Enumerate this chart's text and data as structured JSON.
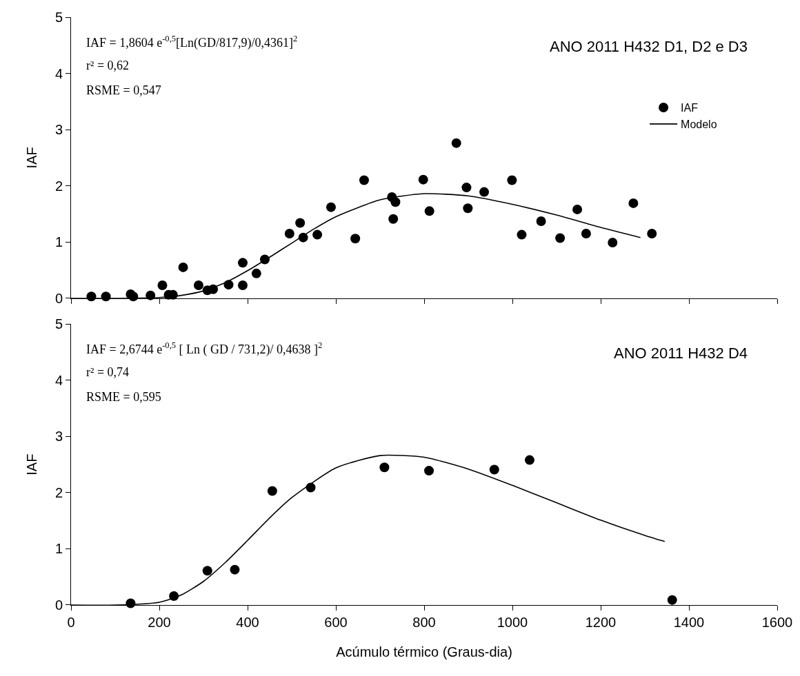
{
  "chart_data": [
    {
      "type": "scatter",
      "title": "ANO 2011 H432 D1, D2 e D3",
      "ylabel": "IAF",
      "xlim": [
        0,
        1600
      ],
      "xticks": [
        0,
        200,
        400,
        600,
        800,
        1000,
        1200,
        1400,
        1600
      ],
      "ylim": [
        0,
        5
      ],
      "yticks": [
        0,
        1,
        2,
        3,
        4,
        5
      ],
      "tick_labels": "y",
      "legend": "top right",
      "annotations": [
        "IAF = 1,8604 e$^{-0,5}$[Ln(GD/817,9)/0,4361]$^{2}$",
        "r² = 0,62",
        "RSME = 0,547"
      ],
      "series": [
        {
          "name": "IAF",
          "marker": "circle",
          "color": "#000000",
          "x": [
            46,
            79,
            135,
            141,
            180,
            207,
            221,
            231,
            254,
            289,
            309,
            322,
            357,
            389,
            389,
            420,
            439,
            495,
            519,
            526,
            558,
            589,
            644,
            664,
            727,
            735,
            730,
            798,
            812,
            873,
            896,
            899,
            936,
            999,
            1021,
            1065,
            1108,
            1147,
            1167,
            1227,
            1274,
            1316
          ],
          "values": [
            0.03,
            0.03,
            0.07,
            0.03,
            0.05,
            0.23,
            0.06,
            0.06,
            0.55,
            0.23,
            0.14,
            0.16,
            0.24,
            0.63,
            0.23,
            0.44,
            0.69,
            1.15,
            1.34,
            1.08,
            1.13,
            1.62,
            1.06,
            2.1,
            1.8,
            1.71,
            1.41,
            2.11,
            1.55,
            2.76,
            1.97,
            1.6,
            1.89,
            2.1,
            1.13,
            1.37,
            1.07,
            1.58,
            1.15,
            0.99,
            1.69,
            1.15
          ]
        },
        {
          "name": "Modelo",
          "type": "line",
          "line_style": "solid",
          "color": "#000000",
          "x": [
            0,
            100,
            200,
            250,
            300,
            350,
            400,
            450,
            500,
            550,
            600,
            700,
            800,
            900,
            1000,
            1100,
            1200,
            1290
          ],
          "values": [
            0,
            0,
            0.01,
            0.05,
            0.13,
            0.28,
            0.49,
            0.73,
            0.98,
            1.23,
            1.45,
            1.75,
            1.86,
            1.82,
            1.67,
            1.48,
            1.26,
            1.08
          ]
        }
      ]
    },
    {
      "type": "scatter",
      "title": "ANO 2011 H432 D4",
      "xlabel": "Acúmulo térmico (Graus-dia)",
      "ylabel": "IAF",
      "xlim": [
        0,
        1600
      ],
      "xticks": [
        0,
        200,
        400,
        600,
        800,
        1000,
        1200,
        1400,
        1600
      ],
      "ylim": [
        0,
        5
      ],
      "yticks": [
        0,
        1,
        2,
        3,
        4,
        5
      ],
      "annotations": [
        "IAF = 2,6744 e$^{-0,5}$ [ Ln ( GD / 731,2)/ 0,4638 ]$^{2}$",
        "r² = 0,74",
        "RSME = 0,595"
      ],
      "series": [
        {
          "marker": "circle",
          "color": "#000000",
          "x": [
            135,
            233,
            309,
            371,
            456,
            543,
            710,
            811,
            959,
            1039,
            1362
          ],
          "values": [
            0.03,
            0.16,
            0.61,
            0.63,
            2.03,
            2.09,
            2.45,
            2.39,
            2.41,
            2.58,
            0.09
          ]
        },
        {
          "type": "line",
          "line_style": "solid",
          "color": "#000000",
          "x": [
            0,
            100,
            200,
            250,
            300,
            350,
            400,
            450,
            500,
            600,
            700,
            800,
            900,
            1000,
            1100,
            1200,
            1300,
            1345
          ],
          "values": [
            0,
            0,
            0.05,
            0.18,
            0.42,
            0.76,
            1.15,
            1.55,
            1.91,
            2.44,
            2.66,
            2.63,
            2.42,
            2.13,
            1.82,
            1.51,
            1.24,
            1.13
          ]
        }
      ]
    }
  ]
}
